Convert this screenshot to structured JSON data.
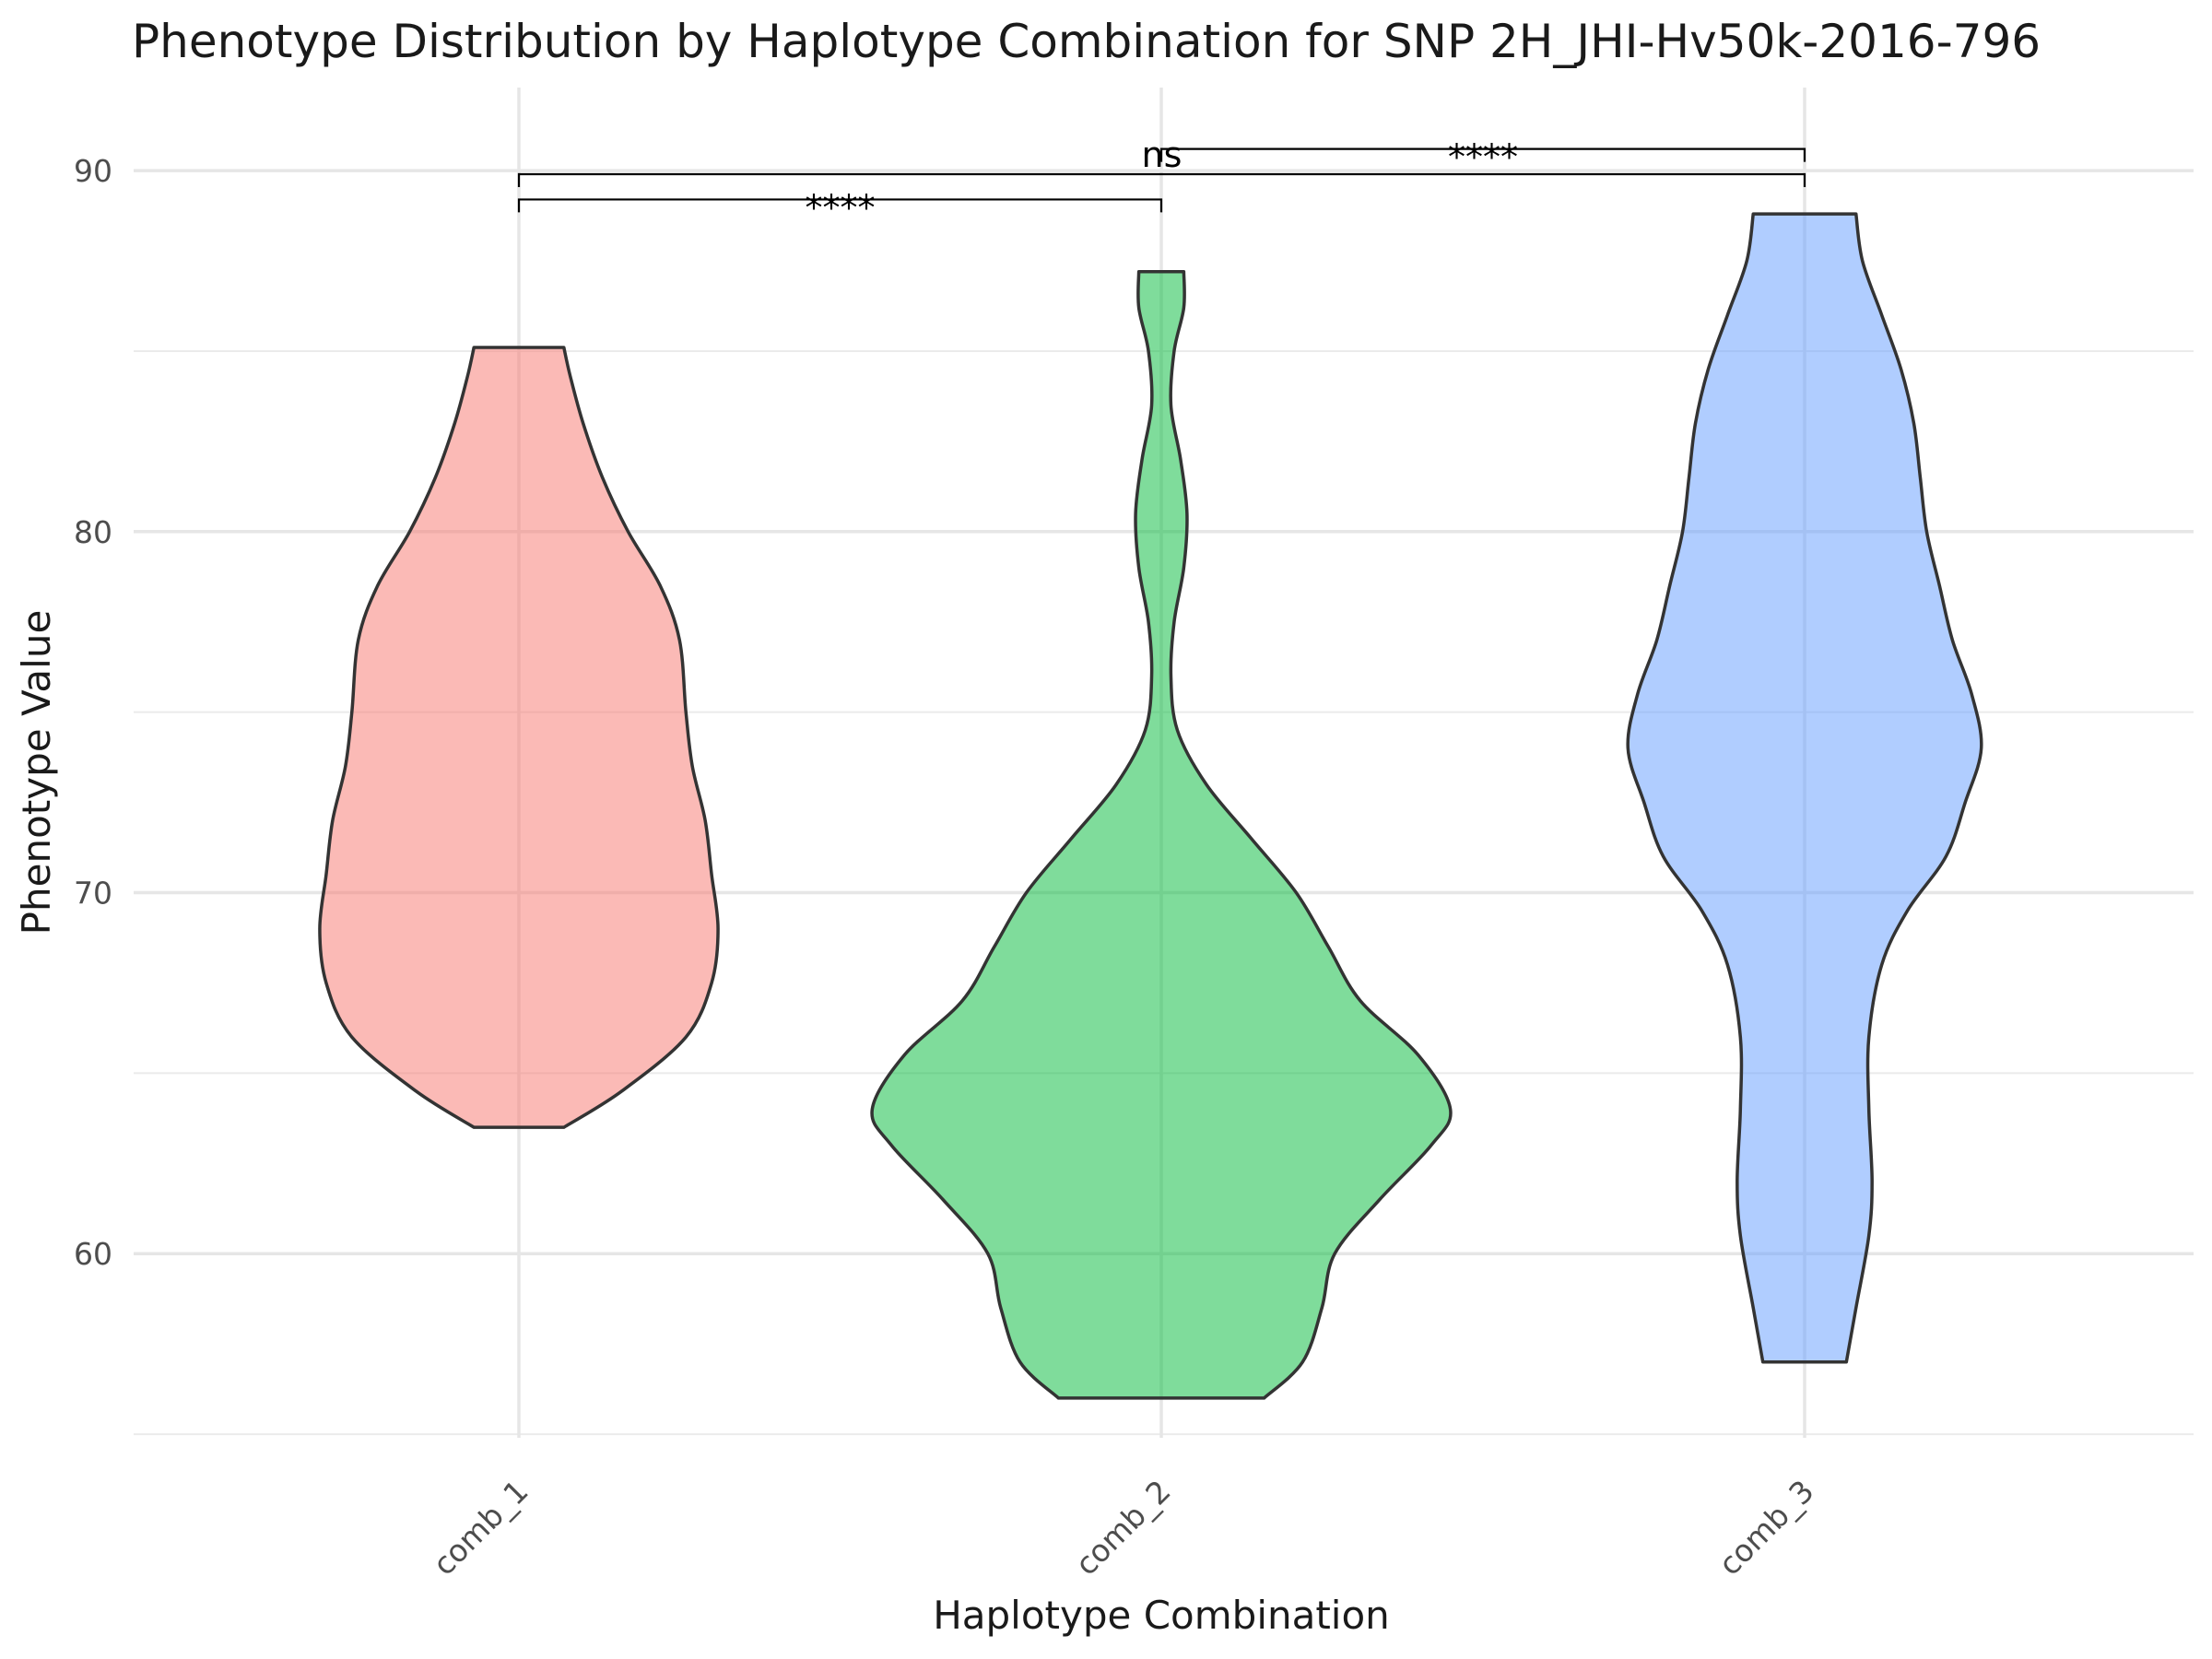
{
  "chart_data": {
    "type": "violin",
    "title": "Phenotype Distribution by Haplotype Combination for SNP 2H_JHI-Hv50k-2016-796",
    "xlabel": "Haplotype Combination",
    "ylabel": "Phenotype Value",
    "categories": [
      "comb_1",
      "comb_2",
      "comb_3"
    ],
    "ylim": [
      54.9,
      92.3
    ],
    "yticks": [
      60,
      70,
      80,
      90
    ],
    "grid": true,
    "legend": "none",
    "colors": [
      "#F8766D",
      "#00BA38",
      "#619CFF"
    ],
    "fill_opacity": 0.5,
    "outline_color": "#333333",
    "series": [
      {
        "category": "comb_1",
        "ymin": 63.5,
        "ymax": 85.1,
        "profile": [
          {
            "y": 63.5,
            "half_width": 0.07
          },
          {
            "y": 64.5,
            "half_width": 0.16
          },
          {
            "y": 66,
            "half_width": 0.26
          },
          {
            "y": 67.5,
            "half_width": 0.3
          },
          {
            "y": 69,
            "half_width": 0.31
          },
          {
            "y": 70.5,
            "half_width": 0.3
          },
          {
            "y": 72,
            "half_width": 0.29
          },
          {
            "y": 73.5,
            "half_width": 0.27
          },
          {
            "y": 75,
            "half_width": 0.26
          },
          {
            "y": 77,
            "half_width": 0.25
          },
          {
            "y": 78.5,
            "half_width": 0.22
          },
          {
            "y": 80,
            "half_width": 0.17
          },
          {
            "y": 81.5,
            "half_width": 0.13
          },
          {
            "y": 83,
            "half_width": 0.1
          },
          {
            "y": 84.3,
            "half_width": 0.08
          },
          {
            "y": 85.1,
            "half_width": 0.07
          }
        ]
      },
      {
        "category": "comb_2",
        "ymin": 56.0,
        "ymax": 87.2,
        "profile": [
          {
            "y": 56.0,
            "half_width": 0.16
          },
          {
            "y": 57,
            "half_width": 0.22
          },
          {
            "y": 58.5,
            "half_width": 0.25
          },
          {
            "y": 60,
            "half_width": 0.27
          },
          {
            "y": 61.5,
            "half_width": 0.34
          },
          {
            "y": 63,
            "half_width": 0.42
          },
          {
            "y": 64,
            "half_width": 0.45
          },
          {
            "y": 65.5,
            "half_width": 0.4
          },
          {
            "y": 67,
            "half_width": 0.31
          },
          {
            "y": 68.5,
            "half_width": 0.26
          },
          {
            "y": 70,
            "half_width": 0.21
          },
          {
            "y": 71.5,
            "half_width": 0.14
          },
          {
            "y": 73,
            "half_width": 0.07
          },
          {
            "y": 74.5,
            "half_width": 0.025
          },
          {
            "y": 76,
            "half_width": 0.015
          },
          {
            "y": 77.5,
            "half_width": 0.02
          },
          {
            "y": 79,
            "half_width": 0.035
          },
          {
            "y": 80.5,
            "half_width": 0.04
          },
          {
            "y": 82,
            "half_width": 0.03
          },
          {
            "y": 83.5,
            "half_width": 0.015
          },
          {
            "y": 85,
            "half_width": 0.02
          },
          {
            "y": 86.2,
            "half_width": 0.035
          },
          {
            "y": 87.2,
            "half_width": 0.035
          }
        ]
      },
      {
        "category": "comb_3",
        "ymin": 57.0,
        "ymax": 88.8,
        "profile": [
          {
            "y": 57.0,
            "half_width": 0.065
          },
          {
            "y": 58.5,
            "half_width": 0.08
          },
          {
            "y": 60.5,
            "half_width": 0.1
          },
          {
            "y": 62,
            "half_width": 0.105
          },
          {
            "y": 64,
            "half_width": 0.1
          },
          {
            "y": 66,
            "half_width": 0.1
          },
          {
            "y": 68,
            "half_width": 0.12
          },
          {
            "y": 69.5,
            "half_width": 0.16
          },
          {
            "y": 71,
            "half_width": 0.22
          },
          {
            "y": 72.5,
            "half_width": 0.25
          },
          {
            "y": 74,
            "half_width": 0.275
          },
          {
            "y": 75.5,
            "half_width": 0.26
          },
          {
            "y": 77,
            "half_width": 0.23
          },
          {
            "y": 78.5,
            "half_width": 0.21
          },
          {
            "y": 80,
            "half_width": 0.19
          },
          {
            "y": 81.5,
            "half_width": 0.18
          },
          {
            "y": 83,
            "half_width": 0.17
          },
          {
            "y": 84.5,
            "half_width": 0.15
          },
          {
            "y": 86,
            "half_width": 0.12
          },
          {
            "y": 87.5,
            "half_width": 0.09
          },
          {
            "y": 88.8,
            "half_width": 0.08
          }
        ]
      }
    ],
    "annotations": [
      {
        "from": "comb_1",
        "to": "comb_2",
        "y": 89.2,
        "label": "****"
      },
      {
        "from": "comb_1",
        "to": "comb_3",
        "y": 89.9,
        "label": "ns"
      },
      {
        "from": "comb_2",
        "to": "comb_3",
        "y": 90.6,
        "label": "****"
      }
    ]
  }
}
